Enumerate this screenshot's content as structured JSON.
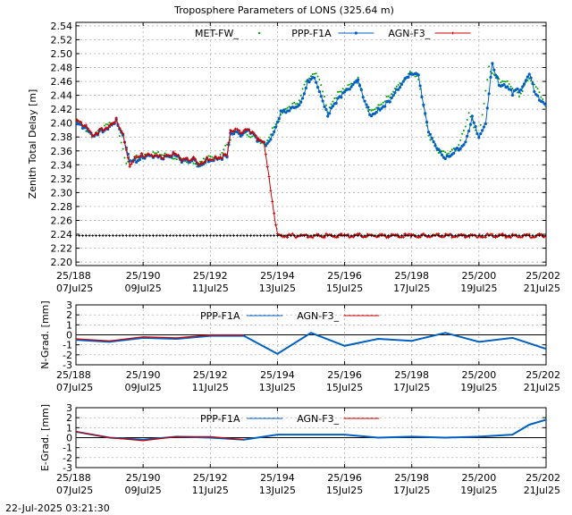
{
  "footer": {
    "timestamp": "22-Jul-2025 03:21:30"
  },
  "chart_data": [
    {
      "type": "scatter",
      "title": "Troposphere Parameters of LONS (325.64 m)",
      "ylabel": "Zenith Total Delay [m]",
      "xlabel": "",
      "xlim": [
        188,
        202
      ],
      "ylim": [
        2.195,
        2.545
      ],
      "yticks": [
        2.2,
        2.22,
        2.24,
        2.26,
        2.28,
        2.3,
        2.32,
        2.34,
        2.36,
        2.38,
        2.4,
        2.42,
        2.44,
        2.46,
        2.48,
        2.5,
        2.52,
        2.54
      ],
      "xticks": [
        188,
        190,
        192,
        194,
        196,
        198,
        200,
        202
      ],
      "xtick_labels": [
        {
          "top": "25/188",
          "bottom": "07Jul25"
        },
        {
          "top": "25/190",
          "bottom": "09Jul25"
        },
        {
          "top": "25/192",
          "bottom": "11Jul25"
        },
        {
          "top": "25/194",
          "bottom": "13Jul25"
        },
        {
          "top": "25/196",
          "bottom": "15Jul25"
        },
        {
          "top": "25/198",
          "bottom": "17Jul25"
        },
        {
          "top": "25/200",
          "bottom": "19Jul25"
        },
        {
          "top": "25/202",
          "bottom": "21Jul25"
        }
      ],
      "grid": true,
      "legend_position": "top",
      "series": [
        {
          "name": "MET-FW_",
          "color": "#00a000",
          "marker": "dot",
          "points": [
            [
              188.0,
              2.407
            ],
            [
              188.5,
              2.38
            ],
            [
              188.9,
              2.396
            ],
            [
              189.2,
              2.405
            ],
            [
              189.5,
              2.342
            ],
            [
              189.8,
              2.351
            ],
            [
              190.1,
              2.354
            ],
            [
              190.5,
              2.357
            ],
            [
              190.9,
              2.35
            ],
            [
              191.3,
              2.346
            ],
            [
              191.6,
              2.339
            ],
            [
              191.9,
              2.35
            ],
            [
              192.3,
              2.352
            ],
            [
              192.7,
              2.387
            ],
            [
              193.0,
              2.385
            ],
            [
              193.3,
              2.381
            ],
            [
              193.6,
              2.367
            ],
            [
              193.9,
              2.395
            ],
            [
              194.3,
              2.423
            ],
            [
              194.6,
              2.428
            ],
            [
              194.9,
              2.465
            ],
            [
              195.2,
              2.47
            ],
            [
              195.5,
              2.418
            ],
            [
              195.8,
              2.442
            ],
            [
              196.1,
              2.452
            ],
            [
              196.4,
              2.464
            ],
            [
              196.7,
              2.416
            ],
            [
              197.0,
              2.426
            ],
            [
              197.3,
              2.437
            ],
            [
              197.7,
              2.46
            ],
            [
              198.0,
              2.474
            ],
            [
              198.2,
              2.465
            ],
            [
              198.5,
              2.382
            ],
            [
              198.8,
              2.36
            ],
            [
              199.1,
              2.356
            ],
            [
              199.4,
              2.366
            ],
            [
              199.7,
              2.413
            ],
            [
              200.0,
              2.38
            ],
            [
              200.3,
              2.48
            ],
            [
              200.6,
              2.462
            ],
            [
              200.9,
              2.458
            ],
            [
              201.2,
              2.44
            ],
            [
              201.5,
              2.465
            ],
            [
              201.8,
              2.445
            ],
            [
              202.0,
              2.42
            ]
          ]
        },
        {
          "name": "PPP-F1A",
          "color": "#0060c0",
          "marker": "line-dot",
          "points": [
            [
              188.0,
              2.4
            ],
            [
              188.3,
              2.392
            ],
            [
              188.5,
              2.379
            ],
            [
              188.7,
              2.387
            ],
            [
              189.0,
              2.395
            ],
            [
              189.2,
              2.403
            ],
            [
              189.4,
              2.383
            ],
            [
              189.6,
              2.348
            ],
            [
              189.8,
              2.345
            ],
            [
              190.0,
              2.352
            ],
            [
              190.3,
              2.352
            ],
            [
              190.6,
              2.349
            ],
            [
              190.9,
              2.354
            ],
            [
              191.2,
              2.345
            ],
            [
              191.5,
              2.347
            ],
            [
              191.7,
              2.338
            ],
            [
              191.9,
              2.346
            ],
            [
              192.2,
              2.349
            ],
            [
              192.5,
              2.352
            ],
            [
              192.6,
              2.386
            ],
            [
              192.9,
              2.384
            ],
            [
              193.2,
              2.388
            ],
            [
              193.4,
              2.376
            ],
            [
              193.7,
              2.368
            ],
            [
              193.9,
              2.385
            ],
            [
              194.1,
              2.416
            ],
            [
              194.4,
              2.42
            ],
            [
              194.7,
              2.43
            ],
            [
              194.9,
              2.46
            ],
            [
              195.1,
              2.468
            ],
            [
              195.3,
              2.44
            ],
            [
              195.5,
              2.412
            ],
            [
              195.7,
              2.428
            ],
            [
              195.9,
              2.44
            ],
            [
              196.2,
              2.452
            ],
            [
              196.4,
              2.46
            ],
            [
              196.6,
              2.43
            ],
            [
              196.8,
              2.41
            ],
            [
              197.0,
              2.42
            ],
            [
              197.3,
              2.43
            ],
            [
              197.6,
              2.45
            ],
            [
              197.8,
              2.466
            ],
            [
              198.0,
              2.471
            ],
            [
              198.2,
              2.47
            ],
            [
              198.3,
              2.44
            ],
            [
              198.5,
              2.385
            ],
            [
              198.8,
              2.36
            ],
            [
              199.0,
              2.348
            ],
            [
              199.3,
              2.36
            ],
            [
              199.6,
              2.372
            ],
            [
              199.8,
              2.41
            ],
            [
              200.0,
              2.38
            ],
            [
              200.2,
              2.4
            ],
            [
              200.4,
              2.487
            ],
            [
              200.6,
              2.455
            ],
            [
              200.8,
              2.452
            ],
            [
              201.0,
              2.443
            ],
            [
              201.3,
              2.45
            ],
            [
              201.5,
              2.47
            ],
            [
              201.7,
              2.44
            ],
            [
              201.9,
              2.43
            ],
            [
              202.0,
              2.425
            ]
          ]
        },
        {
          "name": "AGN-F3_",
          "color": "#cc0000",
          "marker": "line-cross",
          "points": [
            [
              188.0,
              2.404
            ],
            [
              188.3,
              2.395
            ],
            [
              188.5,
              2.38
            ],
            [
              188.7,
              2.389
            ],
            [
              189.0,
              2.396
            ],
            [
              189.2,
              2.405
            ],
            [
              189.4,
              2.385
            ],
            [
              189.6,
              2.34
            ],
            [
              189.8,
              2.352
            ],
            [
              190.0,
              2.354
            ],
            [
              190.3,
              2.353
            ],
            [
              190.6,
              2.35
            ],
            [
              190.9,
              2.356
            ],
            [
              191.2,
              2.347
            ],
            [
              191.5,
              2.349
            ],
            [
              191.7,
              2.34
            ],
            [
              191.9,
              2.348
            ],
            [
              192.2,
              2.35
            ],
            [
              192.5,
              2.354
            ],
            [
              192.6,
              2.39
            ],
            [
              192.9,
              2.388
            ],
            [
              193.2,
              2.389
            ],
            [
              193.4,
              2.378
            ],
            [
              193.6,
              2.37
            ],
            [
              194.0,
              2.238
            ],
            [
              196.0,
              2.238
            ],
            [
              198.0,
              2.238
            ],
            [
              200.0,
              2.238
            ],
            [
              202.0,
              2.238
            ]
          ]
        }
      ]
    },
    {
      "type": "line",
      "ylabel": "N-Grad. [mm]",
      "xlabel": "",
      "xlim": [
        188,
        202
      ],
      "ylim": [
        -3,
        3
      ],
      "yticks": [
        -3,
        -2,
        -1,
        0,
        1,
        2,
        3
      ],
      "grid": true,
      "legend_position": "top",
      "series": [
        {
          "name": "PPP-F1A",
          "color": "#0060c0",
          "x": [
            188,
            189,
            190,
            191,
            192,
            193,
            194,
            195,
            196,
            197,
            198,
            199,
            200,
            201,
            202
          ],
          "y": [
            -0.5,
            -0.7,
            -0.3,
            -0.4,
            -0.1,
            -0.1,
            -1.9,
            0.2,
            -1.1,
            -0.4,
            -0.6,
            0.2,
            -0.7,
            -0.3,
            -1.4
          ]
        },
        {
          "name": "AGN-F3_",
          "color": "#cc0000",
          "x": [
            188,
            189,
            190,
            191,
            192,
            193
          ],
          "y": [
            -0.4,
            -0.6,
            -0.2,
            -0.3,
            0.0,
            0.0
          ]
        }
      ]
    },
    {
      "type": "line",
      "ylabel": "E-Grad. [mm]",
      "xlabel": "",
      "xlim": [
        188,
        202
      ],
      "ylim": [
        -3,
        3
      ],
      "yticks": [
        -3,
        -2,
        -1,
        0,
        1,
        2,
        3
      ],
      "grid": true,
      "legend_position": "top",
      "series": [
        {
          "name": "PPP-F1A",
          "color": "#0060c0",
          "x": [
            188,
            189,
            190,
            191,
            192,
            193,
            194,
            195,
            196,
            197,
            198,
            199,
            200,
            201,
            201.5,
            202
          ],
          "y": [
            0.6,
            0.0,
            -0.2,
            0.1,
            0.0,
            -0.2,
            0.3,
            0.3,
            0.3,
            0.0,
            0.1,
            0.0,
            0.1,
            0.3,
            1.3,
            1.8
          ]
        },
        {
          "name": "AGN-F3_",
          "color": "#cc0000",
          "x": [
            188,
            189,
            190,
            191,
            192,
            193
          ],
          "y": [
            0.6,
            0.0,
            -0.3,
            0.1,
            0.1,
            -0.2
          ]
        }
      ]
    }
  ]
}
